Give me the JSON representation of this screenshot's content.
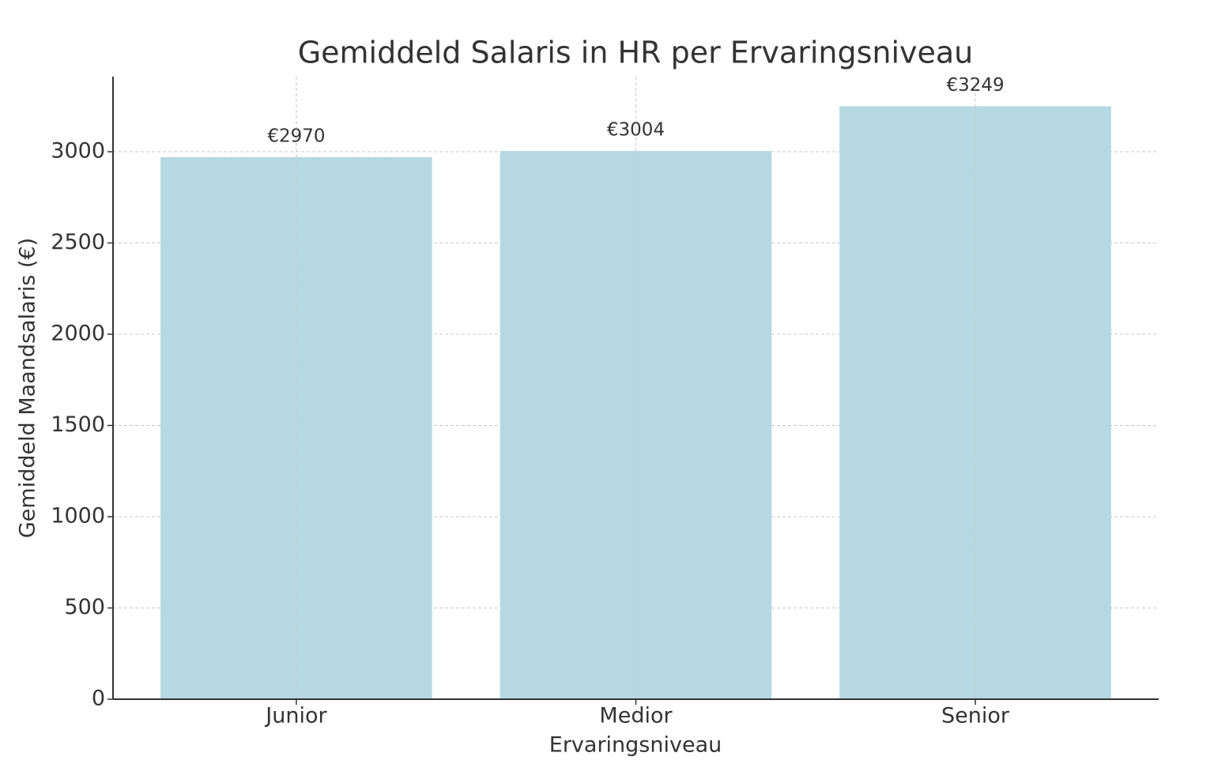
{
  "chart_data": {
    "type": "bar",
    "title": "Gemiddeld Salaris in HR per Ervaringsniveau",
    "x_label": "Ervaringsniveau",
    "y_label": "Gemiddeld Maandsalaris (€)",
    "categories": [
      "Junior",
      "Medior",
      "Senior"
    ],
    "values": [
      2970,
      3004,
      3249
    ],
    "value_labels": [
      "€2970",
      "€3004",
      "€3249"
    ],
    "color": "#b5d8e2",
    "ylim": [
      0,
      3411.45
    ],
    "yticks": [
      0,
      500,
      1000,
      1500,
      2000,
      2500,
      3000
    ],
    "grid": true
  }
}
